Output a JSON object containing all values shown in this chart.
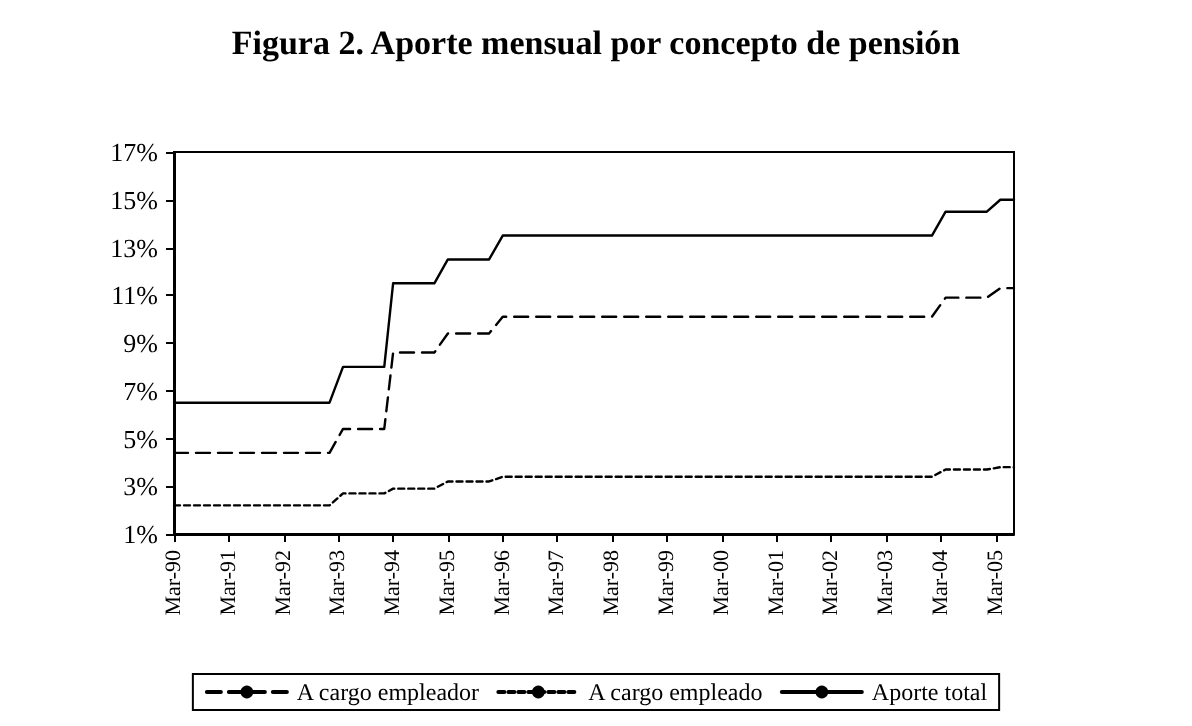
{
  "chart_data": {
    "type": "line",
    "title": "Figura 2. Aporte mensual por concepto de pensión",
    "legend": "bottom",
    "grid": false,
    "marker": "none",
    "xlim": [
      "1990-03",
      "2005-07"
    ],
    "xticks": [
      {
        "value": "1990-03",
        "label": "Mar-90"
      },
      {
        "value": "1991-03",
        "label": "Mar-91"
      },
      {
        "value": "1992-03",
        "label": "Mar-92"
      },
      {
        "value": "1993-03",
        "label": "Mar-93"
      },
      {
        "value": "1994-03",
        "label": "Mar-94"
      },
      {
        "value": "1995-03",
        "label": "Mar-95"
      },
      {
        "value": "1996-03",
        "label": "Mar-96"
      },
      {
        "value": "1997-03",
        "label": "Mar-97"
      },
      {
        "value": "1998-03",
        "label": "Mar-98"
      },
      {
        "value": "1999-03",
        "label": "Mar-99"
      },
      {
        "value": "2000-03",
        "label": "Mar-00"
      },
      {
        "value": "2001-03",
        "label": "Mar-01"
      },
      {
        "value": "2002-03",
        "label": "Mar-02"
      },
      {
        "value": "2003-03",
        "label": "Mar-03"
      },
      {
        "value": "2004-03",
        "label": "Mar-04"
      },
      {
        "value": "2005-03",
        "label": "Mar-05"
      }
    ],
    "ylim": [
      1,
      17
    ],
    "yticks": [
      {
        "value": 1,
        "label": "1%"
      },
      {
        "value": 3,
        "label": "3%"
      },
      {
        "value": 5,
        "label": "5%"
      },
      {
        "value": 7,
        "label": "7%"
      },
      {
        "value": 9,
        "label": "9%"
      },
      {
        "value": 11,
        "label": "11%"
      },
      {
        "value": 13,
        "label": "13%"
      },
      {
        "value": 15,
        "label": "15%"
      },
      {
        "value": 17,
        "label": "17%"
      }
    ],
    "series": [
      {
        "name": "A cargo empleador",
        "color": "#000000",
        "line_style": "dashed",
        "x": [
          "1990-03",
          "1993-01",
          "1993-04",
          "1994-01",
          "1994-03",
          "1994-12",
          "1995-03",
          "1995-12",
          "1996-03",
          "2004-01",
          "2004-04",
          "2005-01",
          "2005-04",
          "2005-07"
        ],
        "values": [
          4.4,
          4.4,
          5.4,
          5.4,
          8.6,
          8.6,
          9.4,
          9.4,
          10.1,
          10.1,
          10.9,
          10.9,
          11.3,
          11.3
        ]
      },
      {
        "name": "A cargo empleado",
        "color": "#000000",
        "line_style": "dotted",
        "x": [
          "1990-03",
          "1993-01",
          "1993-04",
          "1994-01",
          "1994-03",
          "1994-12",
          "1995-03",
          "1995-12",
          "1996-03",
          "2004-01",
          "2004-04",
          "2005-01",
          "2005-04",
          "2005-07"
        ],
        "values": [
          2.2,
          2.2,
          2.7,
          2.7,
          2.9,
          2.9,
          3.2,
          3.2,
          3.4,
          3.4,
          3.7,
          3.7,
          3.8,
          3.8
        ]
      },
      {
        "name": "Aporte total",
        "color": "#000000",
        "line_style": "solid",
        "x": [
          "1990-03",
          "1993-01",
          "1993-04",
          "1994-01",
          "1994-03",
          "1994-12",
          "1995-03",
          "1995-12",
          "1996-03",
          "2004-01",
          "2004-04",
          "2005-01",
          "2005-04",
          "2005-07"
        ],
        "values": [
          6.5,
          6.5,
          8.0,
          8.0,
          11.5,
          11.5,
          12.5,
          12.5,
          13.5,
          13.5,
          14.5,
          14.5,
          15.0,
          15.0
        ]
      }
    ]
  }
}
